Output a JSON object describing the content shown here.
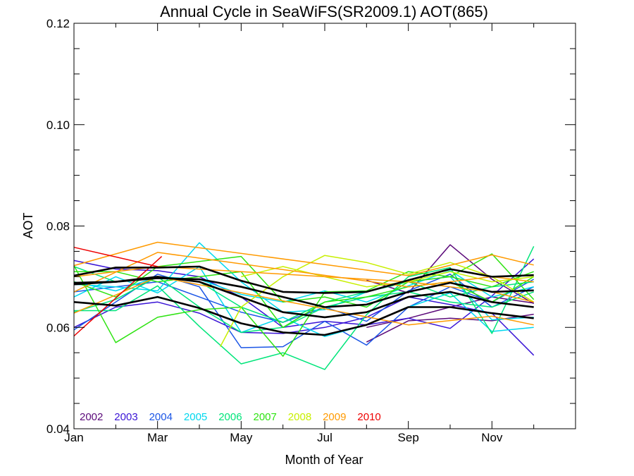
{
  "chart_data": {
    "type": "line",
    "title": "Annual Cycle in SeaWiFS(SR2009.1) AOT(865)",
    "xlabel": "Month of Year",
    "ylabel": "AOT",
    "xlim": [
      1,
      13
    ],
    "ylim": [
      0.04,
      0.12
    ],
    "x_ticks": [
      {
        "value": 1,
        "label": "Jan"
      },
      {
        "value": 3,
        "label": "Mar"
      },
      {
        "value": 5,
        "label": "May"
      },
      {
        "value": 7,
        "label": "Jul"
      },
      {
        "value": 9,
        "label": "Sep"
      },
      {
        "value": 11,
        "label": "Nov"
      }
    ],
    "x_minor_ticks": [
      2,
      4,
      6,
      8,
      10,
      12
    ],
    "y_ticks": [
      {
        "value": 0.04,
        "label": "0.04"
      },
      {
        "value": 0.06,
        "label": "0.06"
      },
      {
        "value": 0.08,
        "label": "0.08"
      },
      {
        "value": 0.1,
        "label": "0.10"
      },
      {
        "value": 0.12,
        "label": "0.12"
      }
    ],
    "y_minor_ticks": [
      0.045,
      0.05,
      0.055,
      0.065,
      0.07,
      0.075,
      0.085,
      0.09,
      0.095,
      0.105,
      0.11,
      0.115
    ],
    "grid": false,
    "legend_position": "bottom-left",
    "legend": [
      {
        "label": "2002",
        "color": "#5b0a7a"
      },
      {
        "label": "2003",
        "color": "#3a14d6"
      },
      {
        "label": "2004",
        "color": "#1a55e6"
      },
      {
        "label": "2005",
        "color": "#00d8ee"
      },
      {
        "label": "2006",
        "color": "#00e57a"
      },
      {
        "label": "2007",
        "color": "#2ee312"
      },
      {
        "label": "2008",
        "color": "#c8ef00"
      },
      {
        "label": "2009",
        "color": "#ff9a00"
      },
      {
        "label": "2010",
        "color": "#ee0000"
      }
    ],
    "series": [
      {
        "color": "#5b0a7a",
        "x": [
          8,
          9,
          10,
          11,
          12
        ],
        "y": [
          0.0571,
          0.0613,
          0.0618,
          0.0613,
          0.0626
        ]
      },
      {
        "color": "#5b0a7a",
        "x": [
          8,
          9,
          10,
          11,
          12
        ],
        "y": [
          0.0693,
          0.0668,
          0.0763,
          0.0695,
          0.0647
        ]
      },
      {
        "color": "#5b0a7a",
        "x": [
          8,
          9,
          10,
          11,
          12
        ],
        "y": [
          0.06,
          0.0618,
          0.064,
          0.066,
          0.0648
        ]
      },
      {
        "color": "#3a14d6",
        "x": [
          1,
          2,
          3,
          4,
          5,
          6,
          7,
          8,
          9,
          10,
          11,
          12
        ],
        "y": [
          0.0732,
          0.0715,
          0.0712,
          0.07,
          0.066,
          0.06,
          0.0612,
          0.0605,
          0.0618,
          0.0598,
          0.0662,
          0.0735
        ]
      },
      {
        "color": "#3a14d6",
        "x": [
          1,
          2,
          3,
          4,
          5,
          6,
          7,
          8,
          9,
          10,
          11,
          12
        ],
        "y": [
          0.06,
          0.064,
          0.065,
          0.0628,
          0.059,
          0.0588,
          0.06,
          0.062,
          0.066,
          0.0645,
          0.0628,
          0.0545
        ]
      },
      {
        "color": "#1a55e6",
        "x": [
          1,
          2,
          3,
          4,
          5,
          6,
          7,
          8,
          9,
          10,
          11,
          12
        ],
        "y": [
          0.0595,
          0.065,
          0.0705,
          0.068,
          0.056,
          0.0562,
          0.0612,
          0.0565,
          0.064,
          0.068,
          0.065,
          0.0695
        ]
      },
      {
        "color": "#1a55e6",
        "x": [
          1,
          2,
          3,
          4,
          5,
          6,
          7,
          8,
          9,
          10,
          11,
          12
        ],
        "y": [
          0.067,
          0.068,
          0.069,
          0.066,
          0.063,
          0.061,
          0.064,
          0.0612,
          0.0672,
          0.0705,
          0.064,
          0.068
        ]
      },
      {
        "color": "#00d8ee",
        "x": [
          1,
          2,
          3,
          4,
          5,
          6,
          7,
          8,
          9,
          10,
          11,
          12
        ],
        "y": [
          0.0685,
          0.068,
          0.0672,
          0.0767,
          0.069,
          0.063,
          0.0635,
          0.067,
          0.069,
          0.07,
          0.0615,
          0.062
        ]
      },
      {
        "color": "#00d8ee",
        "x": [
          1,
          2,
          3,
          4,
          5,
          6,
          7,
          8,
          9,
          10,
          11,
          12
        ],
        "y": [
          0.066,
          0.07,
          0.0668,
          0.072,
          0.059,
          0.062,
          0.0582,
          0.0605,
          0.064,
          0.0668,
          0.0592,
          0.06
        ]
      },
      {
        "color": "#00d8ee",
        "x": [
          1,
          2,
          3,
          4,
          5,
          6,
          7,
          8,
          9,
          10,
          11,
          12
        ],
        "y": [
          0.069,
          0.0672,
          0.07,
          0.0695,
          0.0665,
          0.065,
          0.0672,
          0.065,
          0.0682,
          0.0712,
          0.066,
          0.068
        ]
      },
      {
        "color": "#00e57a",
        "x": [
          1,
          2,
          3,
          4,
          5,
          6,
          7,
          8,
          9,
          10,
          11,
          12
        ],
        "y": [
          0.0633,
          0.0633,
          0.0682,
          0.0602,
          0.0528,
          0.055,
          0.0517,
          0.0625,
          0.07,
          0.0718,
          0.0588,
          0.076
        ]
      },
      {
        "color": "#00e57a",
        "x": [
          1,
          2,
          3,
          4,
          5,
          6,
          7,
          8,
          9,
          10,
          11,
          12
        ],
        "y": [
          0.072,
          0.069,
          0.07,
          0.069,
          0.064,
          0.061,
          0.065,
          0.067,
          0.069,
          0.066,
          0.068,
          0.069
        ]
      },
      {
        "color": "#00e57a",
        "x": [
          1,
          2,
          3,
          4,
          5,
          6,
          7,
          8,
          9,
          10,
          11,
          12
        ],
        "y": [
          0.063,
          0.0655,
          0.07,
          0.064,
          0.059,
          0.06,
          0.064,
          0.066,
          0.067,
          0.065,
          0.064,
          0.067
        ]
      },
      {
        "color": "#2ee312",
        "x": [
          1,
          2,
          3,
          4,
          5,
          6,
          7,
          8,
          9,
          10,
          11,
          12
        ],
        "y": [
          0.0722,
          0.057,
          0.062,
          0.0635,
          0.064,
          0.0543,
          0.067,
          0.0672,
          0.071,
          0.07,
          0.0745,
          0.0655
        ]
      },
      {
        "color": "#2ee312",
        "x": [
          1,
          2,
          3,
          4,
          5,
          6,
          7,
          8,
          9,
          10,
          11,
          12
        ],
        "y": [
          0.071,
          0.071,
          0.069,
          0.07,
          0.071,
          0.06,
          0.065,
          0.066,
          0.068,
          0.069,
          0.065,
          0.07
        ]
      },
      {
        "color": "#2ee312",
        "x": [
          1,
          2,
          3,
          4,
          5,
          6,
          7,
          8,
          9,
          10,
          11,
          12
        ],
        "y": [
          0.069,
          0.066,
          0.072,
          0.073,
          0.074,
          0.065,
          0.066,
          0.064,
          0.069,
          0.07,
          0.068,
          0.071
        ]
      },
      {
        "color": "#c8ef00",
        "x": [
          4.5,
          5,
          6,
          7,
          8,
          9,
          10,
          11,
          12
        ],
        "y": [
          0.0562,
          0.064,
          0.07,
          0.0742,
          0.0728,
          0.0705,
          0.0728,
          0.07,
          0.065
        ]
      },
      {
        "color": "#c8ef00",
        "x": [
          5,
          6,
          7,
          8,
          9,
          10,
          11,
          12
        ],
        "y": [
          0.07,
          0.072,
          0.07,
          0.068,
          0.069,
          0.071,
          0.069,
          0.07
        ]
      },
      {
        "color": "#ff9a00",
        "x": [
          1,
          3,
          9,
          11,
          12
        ],
        "y": [
          0.0722,
          0.0768,
          0.0702,
          0.0743,
          0.0723
        ]
      },
      {
        "color": "#ff9a00",
        "x": [
          1,
          3,
          9,
          11,
          12
        ],
        "y": [
          0.067,
          0.0748,
          0.068,
          0.07,
          0.069
        ]
      },
      {
        "color": "#ff9a00",
        "x": [
          1,
          3,
          9,
          11,
          12
        ],
        "y": [
          0.0628,
          0.07,
          0.0605,
          0.0622,
          0.0605
        ]
      },
      {
        "color": "#ff9a00",
        "x": [
          1,
          3,
          9,
          11,
          12
        ],
        "y": [
          0.07,
          0.072,
          0.069,
          0.067,
          0.065
        ]
      },
      {
        "color": "#ee0000",
        "x": [
          1,
          3
        ],
        "y": [
          0.0758,
          0.072
        ]
      },
      {
        "color": "#ee0000",
        "x": [
          1,
          3.1
        ],
        "y": [
          0.0583,
          0.074
        ]
      },
      {
        "color": "#000000",
        "width": 2.6,
        "x": [
          1,
          2,
          3,
          4,
          5,
          6,
          7,
          8,
          9,
          10,
          11,
          12
        ],
        "y": [
          0.0688,
          0.069,
          0.0697,
          0.0695,
          0.068,
          0.066,
          0.064,
          0.0645,
          0.067,
          0.0688,
          0.067,
          0.0673
        ]
      },
      {
        "color": "#000000",
        "width": 2.6,
        "x": [
          1,
          2,
          3,
          4,
          5,
          6,
          7,
          8,
          9,
          10,
          11,
          12
        ],
        "y": [
          0.065,
          0.0643,
          0.066,
          0.0638,
          0.0608,
          0.059,
          0.0585,
          0.0605,
          0.064,
          0.064,
          0.0628,
          0.0618
        ]
      },
      {
        "color": "#000000",
        "width": 2.6,
        "x": [
          1,
          2,
          3,
          4,
          5,
          6,
          7,
          8,
          9,
          10,
          11,
          12
        ],
        "y": [
          0.0702,
          0.0718,
          0.0718,
          0.072,
          0.0692,
          0.067,
          0.0668,
          0.067,
          0.0693,
          0.0715,
          0.07,
          0.0703
        ]
      },
      {
        "color": "#000000",
        "width": 2.6,
        "x": [
          1,
          2,
          3,
          4,
          5,
          6,
          7,
          8,
          9,
          10,
          11,
          12
        ],
        "y": [
          0.0685,
          0.069,
          0.07,
          0.069,
          0.066,
          0.063,
          0.062,
          0.063,
          0.066,
          0.067,
          0.065,
          0.064
        ]
      }
    ]
  }
}
